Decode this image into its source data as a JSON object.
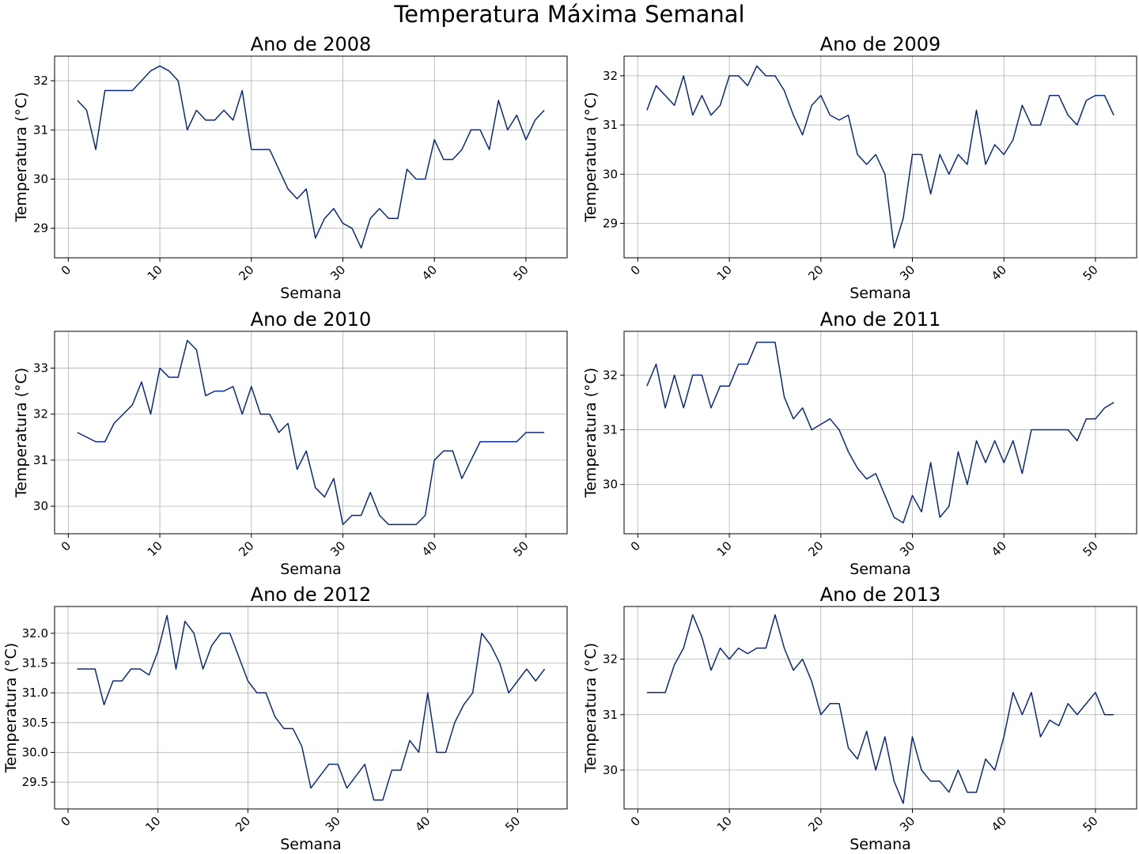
{
  "suptitle": "Temperatura Máxima Semanal",
  "line_color": "#0a2a80",
  "chart_data": [
    {
      "type": "line",
      "title": "Ano de 2008",
      "xlabel": "Semana",
      "ylabel": "Temperatura (°C)",
      "xlim": [
        -1.5,
        54.5
      ],
      "ylim": [
        28.4,
        32.5
      ],
      "xticks": [
        0,
        10,
        20,
        30,
        40,
        50
      ],
      "yticks": [
        29,
        30,
        31,
        32
      ],
      "ytick_labels": [
        "29",
        "30",
        "31",
        "32"
      ],
      "grid": true,
      "x": [
        1,
        2,
        3,
        4,
        5,
        6,
        7,
        8,
        9,
        10,
        11,
        12,
        13,
        14,
        15,
        16,
        17,
        18,
        19,
        20,
        21,
        22,
        23,
        24,
        25,
        26,
        27,
        28,
        29,
        30,
        31,
        32,
        33,
        34,
        35,
        36,
        37,
        38,
        39,
        40,
        41,
        42,
        43,
        44,
        45,
        46,
        47,
        48,
        49,
        50,
        51,
        52
      ],
      "y": [
        31.6,
        31.4,
        30.6,
        31.8,
        31.8,
        31.8,
        31.8,
        32.0,
        32.2,
        32.3,
        32.2,
        32.0,
        31.0,
        31.4,
        31.2,
        31.2,
        31.4,
        31.2,
        31.8,
        30.6,
        30.6,
        30.6,
        30.2,
        29.8,
        29.6,
        29.8,
        28.8,
        29.2,
        29.4,
        29.1,
        29.0,
        28.6,
        29.2,
        29.4,
        29.2,
        29.2,
        30.2,
        30.0,
        30.0,
        30.8,
        30.4,
        30.4,
        30.6,
        31.0,
        31.0,
        30.6,
        31.6,
        31.0,
        31.3,
        30.8,
        31.2,
        31.4
      ]
    },
    {
      "type": "line",
      "title": "Ano de 2009",
      "xlabel": "Semana",
      "ylabel": "Temperatura (°C)",
      "xlim": [
        -1.5,
        54.5
      ],
      "ylim": [
        28.3,
        32.4
      ],
      "xticks": [
        0,
        10,
        20,
        30,
        40,
        50
      ],
      "yticks": [
        29,
        30,
        31,
        32
      ],
      "ytick_labels": [
        "29",
        "30",
        "31",
        "32"
      ],
      "grid": true,
      "x": [
        1,
        2,
        3,
        4,
        5,
        6,
        7,
        8,
        9,
        10,
        11,
        12,
        13,
        14,
        15,
        16,
        17,
        18,
        19,
        20,
        21,
        22,
        23,
        24,
        25,
        26,
        27,
        28,
        29,
        30,
        31,
        32,
        33,
        34,
        35,
        36,
        37,
        38,
        39,
        40,
        41,
        42,
        43,
        44,
        45,
        46,
        47,
        48,
        49,
        50,
        51,
        52
      ],
      "y": [
        31.3,
        31.8,
        31.6,
        31.4,
        32.0,
        31.2,
        31.6,
        31.2,
        31.4,
        32.0,
        32.0,
        31.8,
        32.2,
        32.0,
        32.0,
        31.7,
        31.2,
        30.8,
        31.4,
        31.6,
        31.2,
        31.1,
        31.2,
        30.4,
        30.2,
        30.4,
        30.0,
        28.5,
        29.1,
        30.4,
        30.4,
        29.6,
        30.4,
        30.0,
        30.4,
        30.2,
        31.3,
        30.2,
        30.6,
        30.4,
        30.7,
        31.4,
        31.0,
        31.0,
        31.6,
        31.6,
        31.2,
        31.0,
        31.5,
        31.6,
        31.6,
        31.2
      ]
    },
    {
      "type": "line",
      "title": "Ano de 2010",
      "xlabel": "Semana",
      "ylabel": "Temperatura (°C)",
      "xlim": [
        -1.5,
        54.5
      ],
      "ylim": [
        29.4,
        33.8
      ],
      "xticks": [
        0,
        10,
        20,
        30,
        40,
        50
      ],
      "yticks": [
        30,
        31,
        32,
        33
      ],
      "ytick_labels": [
        "30",
        "31",
        "32",
        "33"
      ],
      "grid": true,
      "x": [
        1,
        3,
        4,
        5,
        6,
        7,
        8,
        9,
        10,
        11,
        12,
        13,
        14,
        15,
        16,
        17,
        18,
        19,
        20,
        21,
        22,
        23,
        24,
        25,
        26,
        27,
        28,
        29,
        30,
        31,
        32,
        33,
        34,
        35,
        36,
        37,
        38,
        39,
        40,
        41,
        42,
        43,
        44,
        45,
        46,
        47,
        48,
        49,
        50,
        51,
        52
      ],
      "y": [
        31.6,
        31.4,
        31.4,
        31.8,
        32.0,
        32.2,
        32.7,
        32.0,
        33.0,
        32.8,
        32.8,
        33.6,
        33.4,
        32.4,
        32.5,
        32.5,
        32.6,
        32.0,
        32.6,
        32.0,
        32.0,
        31.6,
        31.8,
        30.8,
        31.2,
        30.4,
        30.2,
        30.6,
        29.6,
        29.8,
        29.8,
        30.3,
        29.8,
        29.6,
        29.6,
        29.6,
        29.6,
        29.8,
        31.0,
        31.2,
        31.2,
        30.6,
        31.0,
        31.4,
        31.4,
        31.4,
        31.4,
        31.4,
        31.6,
        31.6,
        31.6
      ]
    },
    {
      "type": "line",
      "title": "Ano de 2011",
      "xlabel": "Semana",
      "ylabel": "Temperatura (°C)",
      "xlim": [
        -1.5,
        54.5
      ],
      "ylim": [
        29.1,
        32.8
      ],
      "xticks": [
        0,
        10,
        20,
        30,
        40,
        50
      ],
      "yticks": [
        30,
        31,
        32
      ],
      "ytick_labels": [
        "30",
        "31",
        "32"
      ],
      "grid": true,
      "x": [
        1,
        2,
        3,
        4,
        5,
        6,
        7,
        8,
        9,
        10,
        11,
        12,
        13,
        14,
        15,
        16,
        17,
        18,
        19,
        20,
        21,
        22,
        23,
        24,
        25,
        26,
        27,
        28,
        29,
        30,
        31,
        32,
        33,
        34,
        35,
        36,
        37,
        38,
        39,
        40,
        41,
        42,
        43,
        44,
        45,
        46,
        47,
        48,
        49,
        50,
        51,
        52
      ],
      "y": [
        31.8,
        32.2,
        31.4,
        32.0,
        31.4,
        32.0,
        32.0,
        31.4,
        31.8,
        31.8,
        32.2,
        32.2,
        32.6,
        32.6,
        32.6,
        31.6,
        31.2,
        31.4,
        31.0,
        31.1,
        31.2,
        31.0,
        30.6,
        30.3,
        30.1,
        30.2,
        29.8,
        29.4,
        29.3,
        29.8,
        29.5,
        30.4,
        29.4,
        29.6,
        30.6,
        30.0,
        30.8,
        30.4,
        30.8,
        30.4,
        30.8,
        30.2,
        31.0,
        31.0,
        31.0,
        31.0,
        31.0,
        30.8,
        31.2,
        31.2,
        31.4,
        31.5
      ]
    },
    {
      "type": "line",
      "title": "Ano de 2012",
      "xlabel": "Semana",
      "ylabel": "Temperatura (°C)",
      "xlim": [
        -1.5,
        55.5
      ],
      "ylim": [
        29.05,
        32.45
      ],
      "xticks": [
        0,
        10,
        20,
        30,
        40,
        50
      ],
      "yticks": [
        29.5,
        30.0,
        30.5,
        31.0,
        31.5,
        32.0
      ],
      "ytick_labels": [
        "29.5",
        "30.0",
        "30.5",
        "31.0",
        "31.5",
        "32.0"
      ],
      "grid": true,
      "x": [
        1,
        2,
        3,
        4,
        5,
        6,
        7,
        8,
        9,
        10,
        11,
        12,
        13,
        14,
        15,
        16,
        17,
        18,
        19,
        20,
        21,
        22,
        23,
        24,
        25,
        26,
        27,
        28,
        29,
        30,
        31,
        32,
        33,
        34,
        35,
        36,
        37,
        38,
        39,
        40,
        41,
        42,
        43,
        44,
        45,
        46,
        47,
        48,
        49,
        50,
        51,
        52,
        53
      ],
      "y": [
        31.4,
        31.4,
        31.4,
        30.8,
        31.2,
        31.2,
        31.4,
        31.4,
        31.3,
        31.7,
        32.3,
        31.4,
        32.2,
        32.0,
        31.4,
        31.8,
        32.0,
        32.0,
        31.6,
        31.2,
        31.0,
        31.0,
        30.6,
        30.4,
        30.4,
        30.1,
        29.4,
        29.6,
        29.8,
        29.8,
        29.4,
        29.6,
        29.8,
        29.2,
        29.2,
        29.7,
        29.7,
        30.2,
        30.0,
        31.0,
        30.0,
        30.0,
        30.5,
        30.8,
        31.0,
        32.0,
        31.8,
        31.5,
        31.0,
        31.2,
        31.4,
        31.2,
        31.4
      ]
    },
    {
      "type": "line",
      "title": "Ano de 2013",
      "xlabel": "Semana",
      "ylabel": "Temperatura (°C)",
      "xlim": [
        -1.5,
        54.5
      ],
      "ylim": [
        29.3,
        32.95
      ],
      "xticks": [
        0,
        10,
        20,
        30,
        40,
        50
      ],
      "yticks": [
        30,
        31,
        32
      ],
      "ytick_labels": [
        "30",
        "31",
        "32"
      ],
      "grid": true,
      "x": [
        1,
        2,
        3,
        4,
        5,
        6,
        7,
        8,
        9,
        10,
        11,
        12,
        13,
        14,
        15,
        16,
        17,
        18,
        19,
        20,
        21,
        22,
        23,
        24,
        25,
        26,
        27,
        28,
        29,
        30,
        31,
        32,
        33,
        34,
        35,
        36,
        37,
        38,
        39,
        40,
        41,
        42,
        43,
        44,
        45,
        46,
        47,
        48,
        49,
        50,
        51,
        52
      ],
      "y": [
        31.4,
        31.4,
        31.4,
        31.9,
        32.2,
        32.8,
        32.4,
        31.8,
        32.2,
        32.0,
        32.2,
        32.1,
        32.2,
        32.2,
        32.8,
        32.2,
        31.8,
        32.0,
        31.6,
        31.0,
        31.2,
        31.2,
        30.4,
        30.2,
        30.7,
        30.0,
        30.6,
        29.8,
        29.4,
        30.6,
        30.0,
        29.8,
        29.8,
        29.6,
        30.0,
        29.6,
        29.6,
        30.2,
        30.0,
        30.6,
        31.4,
        31.0,
        31.4,
        30.6,
        30.9,
        30.8,
        31.2,
        31.0,
        31.2,
        31.4,
        31.0,
        31.0
      ]
    }
  ]
}
